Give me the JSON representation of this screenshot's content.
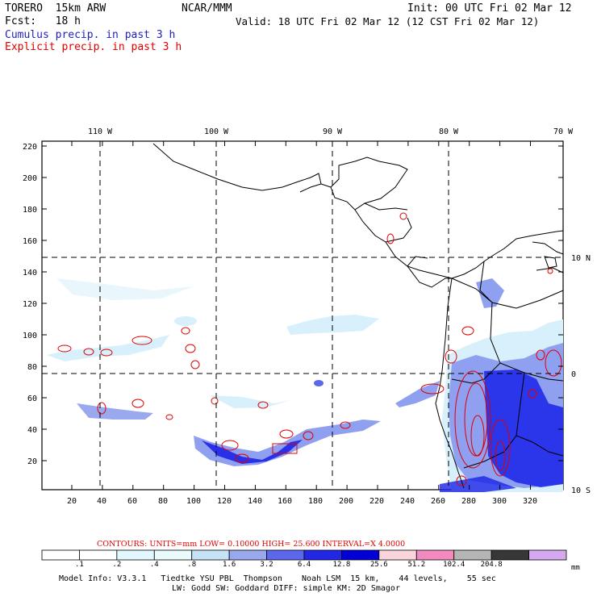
{
  "header": {
    "model": "TORERO  15km ARW",
    "center": "NCAR/MMM",
    "init": "Init: 00 UTC Fri 02 Mar 12",
    "fcst": "Fcst:   18 h",
    "valid": "Valid: 18 UTC Fri 02 Mar 12 (12 CST Fri 02 Mar 12)",
    "legend_cumulus": "Cumulus precip. in past 3 h",
    "legend_explicit": "Explicit precip. in past 3 h"
  },
  "map": {
    "top_lon_labels": [
      "110 W",
      "100 W",
      "90 W",
      "80 W",
      "70 W"
    ],
    "right_lat_labels": [
      "10 N",
      "0",
      "10 S"
    ],
    "y_ticks": [
      "220",
      "200",
      "180",
      "160",
      "140",
      "120",
      "100",
      "80",
      "60",
      "40",
      "20"
    ],
    "x_ticks": [
      "20",
      "40",
      "60",
      "80",
      "100",
      "120",
      "140",
      "160",
      "180",
      "200",
      "220",
      "240",
      "260",
      "280",
      "300",
      "320"
    ],
    "colors": {
      "cumulus_light": "#d7f0fb",
      "cumulus_mid": "#8fa0f0",
      "cumulus_dark": "#1a22e8",
      "explicit_contour": "#e00000",
      "coastline": "#000000"
    }
  },
  "contour_info": {
    "label": "CONTOURS:  UNITS=mm  LOW= 0.10000      HIGH=  25.600      INTERVAL=X  4.0000"
  },
  "colorbar": {
    "labels": [
      ".1",
      ".2",
      ".4",
      ".8",
      "1.6",
      "3.2",
      "6.4",
      "12.8",
      "25.6",
      "51.2",
      "102.4",
      "204.8"
    ],
    "units": "mm",
    "colors": [
      "#ffffff",
      "#ffffff",
      "#e3f7ff",
      "#e9fbfb",
      "#c6e2f6",
      "#9aa8ee",
      "#5c68ec",
      "#2227e6",
      "#0000d6",
      "#f9d4da",
      "#f28bbd",
      "#b5b5b5",
      "#373737",
      "#d4a9f0"
    ]
  },
  "footer": {
    "line1": "Model Info: V3.3.1   Tiedtke YSU PBL  Thompson    Noah LSM  15 km,    44 levels,    55 sec",
    "line2": "LW: Godd SW: Goddard DIFF: simple KM: 2D Smagor"
  }
}
